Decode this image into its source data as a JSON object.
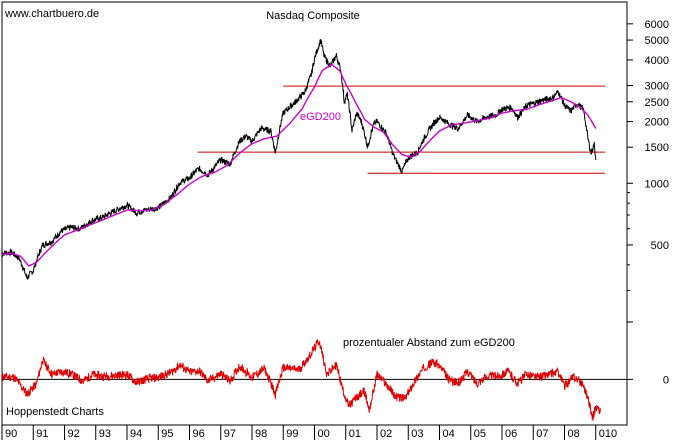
{
  "chart_data": {
    "type": "line",
    "source_label": "www.chartbuero.de",
    "title": "Nasdaq Composite",
    "footer_label": "Hoppenstedt Charts",
    "upper_panel": {
      "scale": "log",
      "ylim": [
        220,
        7500
      ],
      "y_ticks": [
        500,
        1000,
        1500,
        2000,
        2500,
        3000,
        4000,
        5000,
        6000
      ],
      "y_tick_labels": [
        "500",
        "1000",
        "1500",
        "2000",
        "2500",
        "3000",
        "4000",
        "5000",
        "6000"
      ],
      "series": [
        {
          "id": "nasdaq",
          "color": "#000000",
          "points": [
            [
              1990.0,
              455
            ],
            [
              1990.3,
              460
            ],
            [
              1990.55,
              430
            ],
            [
              1990.8,
              345
            ],
            [
              1991.0,
              375
            ],
            [
              1991.3,
              500
            ],
            [
              1991.6,
              520
            ],
            [
              1991.9,
              585
            ],
            [
              1992.2,
              610
            ],
            [
              1992.5,
              600
            ],
            [
              1992.9,
              660
            ],
            [
              1993.2,
              680
            ],
            [
              1993.5,
              720
            ],
            [
              1993.9,
              770
            ],
            [
              1994.0,
              780
            ],
            [
              1994.3,
              720
            ],
            [
              1994.6,
              740
            ],
            [
              1995.0,
              760
            ],
            [
              1995.4,
              850
            ],
            [
              1995.7,
              1010
            ],
            [
              1996.0,
              1060
            ],
            [
              1996.3,
              1180
            ],
            [
              1996.6,
              1100
            ],
            [
              1997.0,
              1300
            ],
            [
              1997.3,
              1240
            ],
            [
              1997.6,
              1600
            ],
            [
              1997.8,
              1700
            ],
            [
              1998.0,
              1600
            ],
            [
              1998.3,
              1860
            ],
            [
              1998.6,
              1800
            ],
            [
              1998.75,
              1400
            ],
            [
              1999.0,
              2200
            ],
            [
              1999.4,
              2500
            ],
            [
              1999.7,
              2800
            ],
            [
              1999.9,
              3400
            ],
            [
              2000.0,
              4050
            ],
            [
              2000.2,
              5000
            ],
            [
              2000.3,
              4200
            ],
            [
              2000.5,
              3700
            ],
            [
              2000.7,
              4200
            ],
            [
              2000.85,
              3500
            ],
            [
              2000.95,
              2500
            ],
            [
              2001.05,
              2700
            ],
            [
              2001.2,
              1800
            ],
            [
              2001.35,
              2200
            ],
            [
              2001.5,
              2000
            ],
            [
              2001.7,
              1500
            ],
            [
              2001.9,
              1950
            ],
            [
              2002.0,
              2000
            ],
            [
              2002.3,
              1750
            ],
            [
              2002.5,
              1400
            ],
            [
              2002.6,
              1300
            ],
            [
              2002.8,
              1140
            ],
            [
              2003.0,
              1330
            ],
            [
              2003.3,
              1420
            ],
            [
              2003.5,
              1650
            ],
            [
              2003.8,
              1950
            ],
            [
              2004.0,
              2100
            ],
            [
              2004.3,
              1950
            ],
            [
              2004.6,
              1850
            ],
            [
              2004.9,
              2150
            ],
            [
              2005.2,
              2000
            ],
            [
              2005.5,
              2100
            ],
            [
              2005.8,
              2150
            ],
            [
              2006.0,
              2300
            ],
            [
              2006.3,
              2350
            ],
            [
              2006.5,
              2100
            ],
            [
              2006.8,
              2400
            ],
            [
              2007.0,
              2450
            ],
            [
              2007.3,
              2550
            ],
            [
              2007.6,
              2600
            ],
            [
              2007.8,
              2800
            ],
            [
              2008.0,
              2400
            ],
            [
              2008.2,
              2250
            ],
            [
              2008.4,
              2450
            ],
            [
              2008.6,
              2300
            ],
            [
              2008.75,
              1650
            ],
            [
              2008.85,
              1400
            ],
            [
              2008.95,
              1550
            ],
            [
              2009.0,
              1300
            ]
          ]
        },
        {
          "id": "egd200",
          "color": "#cc00cc",
          "label": "eGD200",
          "points": [
            [
              1990.0,
              450
            ],
            [
              1990.3,
              455
            ],
            [
              1990.6,
              440
            ],
            [
              1990.85,
              395
            ],
            [
              1991.1,
              410
            ],
            [
              1991.4,
              460
            ],
            [
              1991.7,
              510
            ],
            [
              1992.0,
              560
            ],
            [
              1992.4,
              590
            ],
            [
              1992.8,
              625
            ],
            [
              1993.2,
              660
            ],
            [
              1993.6,
              700
            ],
            [
              1994.0,
              740
            ],
            [
              1994.4,
              735
            ],
            [
              1994.8,
              740
            ],
            [
              1995.2,
              790
            ],
            [
              1995.6,
              880
            ],
            [
              1996.0,
              990
            ],
            [
              1996.4,
              1080
            ],
            [
              1996.8,
              1130
            ],
            [
              1997.2,
              1220
            ],
            [
              1997.6,
              1400
            ],
            [
              1998.0,
              1560
            ],
            [
              1998.4,
              1650
            ],
            [
              1998.8,
              1700
            ],
            [
              1999.2,
              1950
            ],
            [
              1999.6,
              2300
            ],
            [
              2000.0,
              2950
            ],
            [
              2000.25,
              3550
            ],
            [
              2000.55,
              3800
            ],
            [
              2000.8,
              3550
            ],
            [
              2001.0,
              3050
            ],
            [
              2001.3,
              2500
            ],
            [
              2001.6,
              2050
            ],
            [
              2001.9,
              1880
            ],
            [
              2002.2,
              1780
            ],
            [
              2002.5,
              1540
            ],
            [
              2002.8,
              1380
            ],
            [
              2003.1,
              1340
            ],
            [
              2003.4,
              1440
            ],
            [
              2003.7,
              1620
            ],
            [
              2004.0,
              1800
            ],
            [
              2004.4,
              1930
            ],
            [
              2004.8,
              1970
            ],
            [
              2005.2,
              2020
            ],
            [
              2005.6,
              2080
            ],
            [
              2006.0,
              2200
            ],
            [
              2006.4,
              2260
            ],
            [
              2006.8,
              2300
            ],
            [
              2007.2,
              2420
            ],
            [
              2007.6,
              2530
            ],
            [
              2007.9,
              2620
            ],
            [
              2008.2,
              2500
            ],
            [
              2008.5,
              2350
            ],
            [
              2008.75,
              2150
            ],
            [
              2009.0,
              1850
            ]
          ]
        }
      ],
      "horizontal_lines": [
        {
          "value": 2980,
          "x_start": 1999.0,
          "x_end": 2009.3,
          "color": "#cc0000"
        },
        {
          "value": 1420,
          "x_start": 1996.25,
          "x_end": 2009.3,
          "color": "#cc0000"
        },
        {
          "value": 1120,
          "x_start": 2001.7,
          "x_end": 2009.3,
          "color": "#cc0000"
        }
      ]
    },
    "lower_panel": {
      "label": "prozentualer Abstand zum eGD200",
      "y_ticks": [
        0
      ],
      "y_tick_labels": [
        "0"
      ],
      "ylim": [
        -45,
        55
      ],
      "series": [
        {
          "id": "abstand",
          "color": "#dd0000",
          "points": [
            [
              1990.0,
              3
            ],
            [
              1990.4,
              2
            ],
            [
              1990.8,
              -15
            ],
            [
              1991.1,
              -5
            ],
            [
              1991.3,
              20
            ],
            [
              1991.6,
              5
            ],
            [
              1991.9,
              8
            ],
            [
              1992.2,
              6
            ],
            [
              1992.6,
              -2
            ],
            [
              1992.9,
              5
            ],
            [
              1993.2,
              3
            ],
            [
              1993.6,
              4
            ],
            [
              1994.0,
              5
            ],
            [
              1994.3,
              -3
            ],
            [
              1994.6,
              0
            ],
            [
              1995.0,
              2
            ],
            [
              1995.4,
              7
            ],
            [
              1995.7,
              15
            ],
            [
              1996.0,
              7
            ],
            [
              1996.3,
              9
            ],
            [
              1996.6,
              -2
            ],
            [
              1997.0,
              6
            ],
            [
              1997.3,
              -2
            ],
            [
              1997.6,
              14
            ],
            [
              1998.0,
              2
            ],
            [
              1998.4,
              11
            ],
            [
              1998.75,
              -15
            ],
            [
              1999.0,
              12
            ],
            [
              1999.5,
              10
            ],
            [
              1999.8,
              22
            ],
            [
              2000.15,
              40
            ],
            [
              2000.4,
              5
            ],
            [
              2000.7,
              15
            ],
            [
              2000.9,
              -10
            ],
            [
              2001.1,
              -28
            ],
            [
              2001.3,
              -20
            ],
            [
              2001.6,
              -12
            ],
            [
              2001.75,
              -32
            ],
            [
              2002.0,
              5
            ],
            [
              2002.3,
              -5
            ],
            [
              2002.6,
              -18
            ],
            [
              2002.9,
              -20
            ],
            [
              2003.2,
              -2
            ],
            [
              2003.5,
              12
            ],
            [
              2003.8,
              18
            ],
            [
              2004.0,
              14
            ],
            [
              2004.3,
              0
            ],
            [
              2004.6,
              -4
            ],
            [
              2004.9,
              8
            ],
            [
              2005.2,
              -4
            ],
            [
              2005.5,
              3
            ],
            [
              2005.9,
              4
            ],
            [
              2006.2,
              8
            ],
            [
              2006.5,
              -4
            ],
            [
              2006.8,
              6
            ],
            [
              2007.1,
              2
            ],
            [
              2007.5,
              5
            ],
            [
              2007.8,
              8
            ],
            [
              2008.0,
              -7
            ],
            [
              2008.3,
              3
            ],
            [
              2008.6,
              -5
            ],
            [
              2008.8,
              -25
            ],
            [
              2008.9,
              -40
            ],
            [
              2009.0,
              -28
            ],
            [
              2009.15,
              -33
            ]
          ]
        }
      ],
      "zero_line_color": "#000000"
    },
    "x_axis": {
      "range": [
        1990.0,
        2010.0
      ],
      "tick_labels": [
        "90",
        "91",
        "92",
        "93",
        "94",
        "95",
        "96",
        "97",
        "98",
        "99",
        "00",
        "01",
        "02",
        "03",
        "04",
        "05",
        "06",
        "07",
        "08",
        "010"
      ]
    },
    "grid": false,
    "colors": {
      "price": "#000000",
      "average": "#cc00cc",
      "support_lines": "#cc0000",
      "oscillator": "#dd0000"
    }
  }
}
